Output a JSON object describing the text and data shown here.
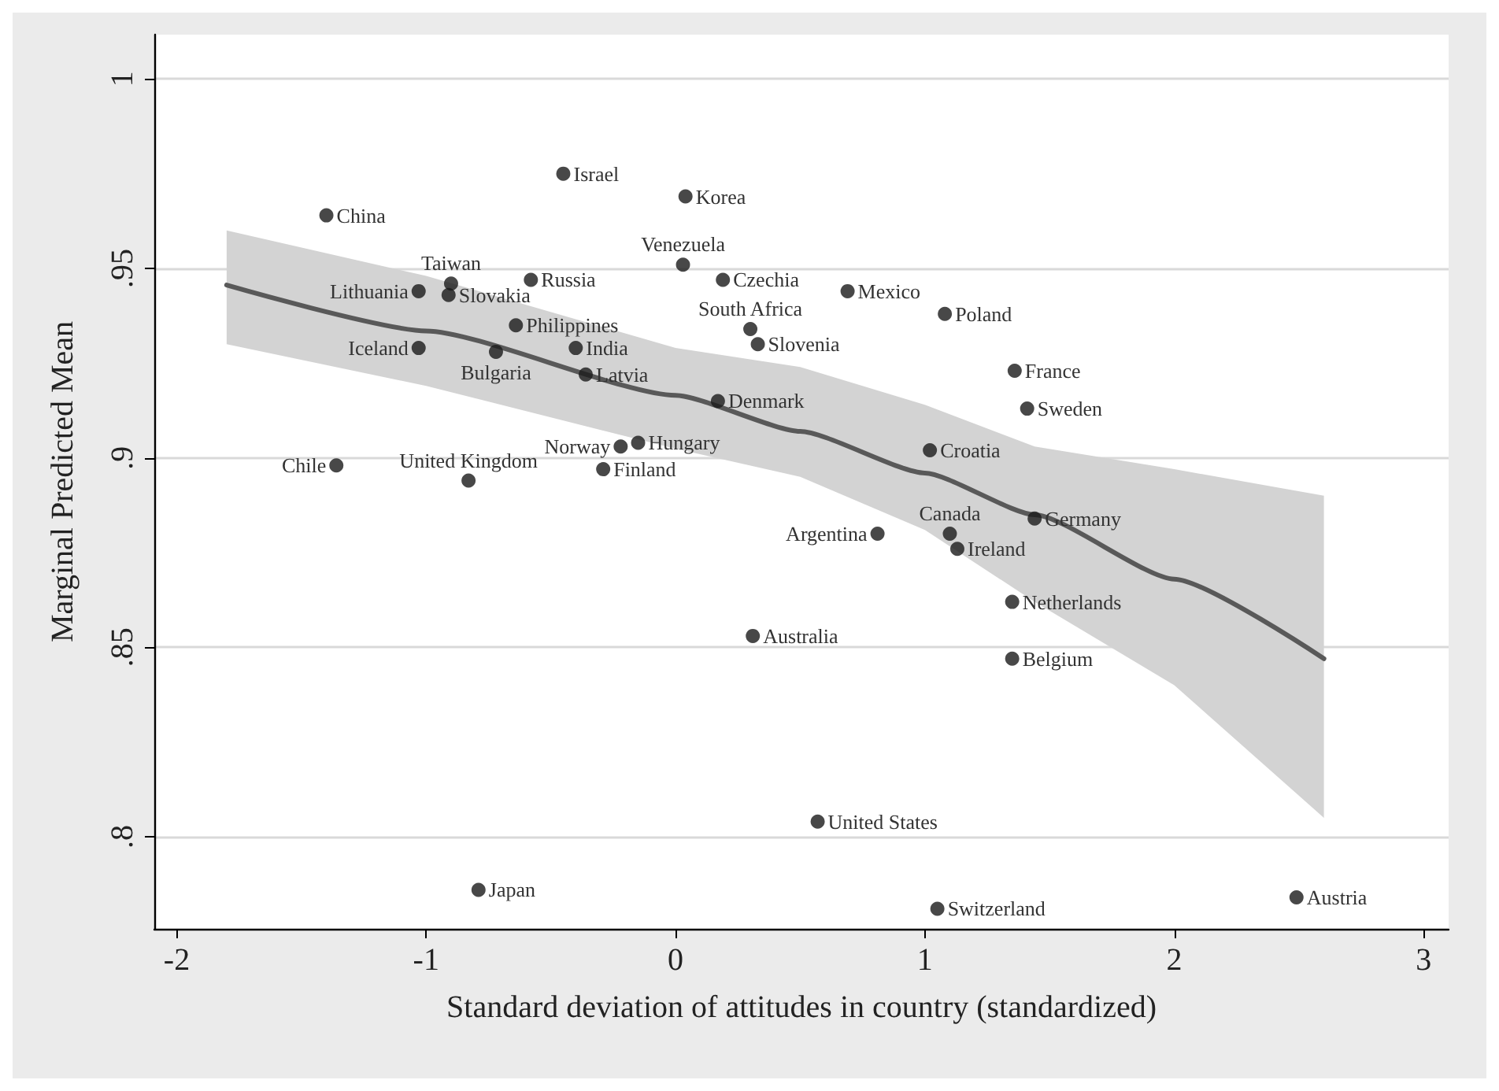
{
  "chart_data": {
    "type": "scatter",
    "xlabel": "Standard deviation of attitudes in country (standardized)",
    "ylabel": "Marginal Predicted Mean",
    "xlim": [
      -2.09,
      3.1
    ],
    "xticks": [
      -2,
      -1,
      0,
      1,
      2,
      3
    ],
    "ylim": [
      0.7757,
      1.0117
    ],
    "yticks": [
      {
        "value": 0.8,
        "label": ".8"
      },
      {
        "value": 0.85,
        "label": ".85"
      },
      {
        "value": 0.9,
        "label": ".9"
      },
      {
        "value": 0.95,
        "label": ".95"
      },
      {
        "value": 1,
        "label": "1"
      }
    ],
    "grid": "y",
    "marker": "circle",
    "series": [
      {
        "color": "#1a1a1a",
        "x": [
          -1.4,
          -0.45,
          0.04,
          0.03,
          -0.9,
          -1.03,
          -0.91,
          -0.58,
          0.19,
          -0.64,
          -1.03,
          -0.72,
          -0.4,
          -0.36,
          0.3,
          0.33,
          0.17,
          -0.22,
          -0.15,
          -0.29,
          -1.36,
          -0.83,
          0.69,
          1.08,
          1.36,
          1.41,
          1.02,
          0.81,
          1.1,
          1.13,
          1.44,
          1.35,
          0.31,
          1.35,
          0.57,
          -0.79,
          1.05,
          2.49
        ],
        "values": [
          0.964,
          0.975,
          0.969,
          0.951,
          0.946,
          0.944,
          0.943,
          0.947,
          0.947,
          0.935,
          0.929,
          0.928,
          0.929,
          0.922,
          0.934,
          0.93,
          0.915,
          0.903,
          0.904,
          0.897,
          0.898,
          0.894,
          0.944,
          0.938,
          0.923,
          0.913,
          0.902,
          0.88,
          0.88,
          0.876,
          0.884,
          0.862,
          0.853,
          0.847,
          0.804,
          0.786,
          0.781,
          0.784
        ]
      },
      {
        "type": "line",
        "color": "#595959",
        "marker": "none",
        "line_style": "solid",
        "x": [
          -1.8,
          -1,
          0,
          0.5,
          1,
          1.44,
          2,
          2.6
        ],
        "values": [
          0.9456,
          0.9335,
          0.9165,
          0.907,
          0.896,
          0.885,
          0.868,
          0.847
        ],
        "lower": [
          0.93,
          0.919,
          0.9024,
          0.895,
          0.881,
          0.862,
          0.84,
          0.805
        ],
        "upper": [
          0.96,
          0.948,
          0.929,
          0.924,
          0.914,
          0.903,
          0.897,
          0.89
        ]
      }
    ],
    "annotations": [
      {
        "text": "China",
        "x": -1.4,
        "y": 0.964
      },
      {
        "text": "Israel",
        "x": -0.45,
        "y": 0.975
      },
      {
        "text": "Korea",
        "x": 0.04,
        "y": 0.969
      },
      {
        "text": "Venezuela",
        "x": 0.03,
        "y": 0.951
      },
      {
        "text": "Taiwan",
        "x": -0.9,
        "y": 0.946
      },
      {
        "text": "Lithuania",
        "x": -1.03,
        "y": 0.944
      },
      {
        "text": "Slovakia",
        "x": -0.91,
        "y": 0.943
      },
      {
        "text": "Russia",
        "x": -0.58,
        "y": 0.947
      },
      {
        "text": "Czechia",
        "x": 0.19,
        "y": 0.947
      },
      {
        "text": "Philippines",
        "x": -0.64,
        "y": 0.935
      },
      {
        "text": "Iceland",
        "x": -1.03,
        "y": 0.929
      },
      {
        "text": "Bulgaria",
        "x": -0.72,
        "y": 0.928
      },
      {
        "text": "India",
        "x": -0.4,
        "y": 0.929
      },
      {
        "text": "Latvia",
        "x": -0.36,
        "y": 0.922
      },
      {
        "text": "South Africa",
        "x": 0.3,
        "y": 0.934
      },
      {
        "text": "Slovenia",
        "x": 0.33,
        "y": 0.93
      },
      {
        "text": "Denmark",
        "x": 0.17,
        "y": 0.915
      },
      {
        "text": "Norway",
        "x": -0.22,
        "y": 0.903
      },
      {
        "text": "Hungary",
        "x": -0.15,
        "y": 0.904
      },
      {
        "text": "Finland",
        "x": -0.29,
        "y": 0.897
      },
      {
        "text": "Chile",
        "x": -1.36,
        "y": 0.898
      },
      {
        "text": "United Kingdom",
        "x": -0.83,
        "y": 0.894
      },
      {
        "text": "Mexico",
        "x": 0.69,
        "y": 0.944
      },
      {
        "text": "Poland",
        "x": 1.08,
        "y": 0.938
      },
      {
        "text": "France",
        "x": 1.36,
        "y": 0.923
      },
      {
        "text": "Sweden",
        "x": 1.41,
        "y": 0.913
      },
      {
        "text": "Croatia",
        "x": 1.02,
        "y": 0.902
      },
      {
        "text": "Argentina",
        "x": 0.81,
        "y": 0.88
      },
      {
        "text": "Canada",
        "x": 1.1,
        "y": 0.88
      },
      {
        "text": "Ireland",
        "x": 1.13,
        "y": 0.876
      },
      {
        "text": "Germany",
        "x": 1.44,
        "y": 0.884
      },
      {
        "text": "Netherlands",
        "x": 1.35,
        "y": 0.862
      },
      {
        "text": "Australia",
        "x": 0.31,
        "y": 0.853
      },
      {
        "text": "Belgium",
        "x": 1.35,
        "y": 0.847
      },
      {
        "text": "United States",
        "x": 0.57,
        "y": 0.804
      },
      {
        "text": "Japan",
        "x": -0.79,
        "y": 0.786
      },
      {
        "text": "Switzerland",
        "x": 1.05,
        "y": 0.781
      },
      {
        "text": "Austria",
        "x": 2.49,
        "y": 0.784
      }
    ]
  }
}
